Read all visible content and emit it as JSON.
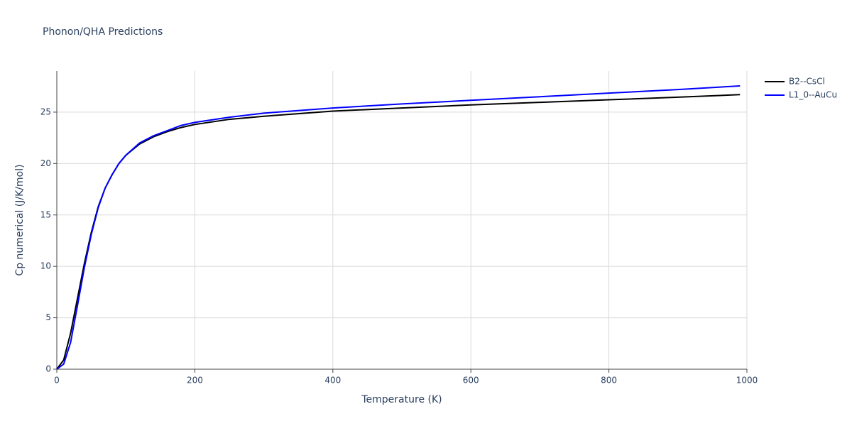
{
  "chart_data": {
    "type": "line",
    "title": "Phonon/QHA Predictions",
    "x_label": "Temperature (K)",
    "y_label": "Cp numerical (J/K/mol)",
    "x": [
      0,
      10,
      20,
      30,
      40,
      50,
      60,
      70,
      80,
      90,
      100,
      120,
      140,
      160,
      180,
      200,
      250,
      300,
      400,
      500,
      600,
      700,
      800,
      900,
      990
    ],
    "series": [
      {
        "name": "B2--CsCl",
        "color": "#000000",
        "values": [
          0,
          0.9,
          3.5,
          6.9,
          10.3,
          13.3,
          15.8,
          17.6,
          18.9,
          20.0,
          20.8,
          21.9,
          22.6,
          23.1,
          23.5,
          23.8,
          24.3,
          24.6,
          25.1,
          25.4,
          25.7,
          25.95,
          26.2,
          26.45,
          26.7
        ]
      },
      {
        "name": "L1_0--AuCu",
        "color": "#0000ff",
        "values": [
          0,
          0.5,
          2.6,
          6.2,
          9.9,
          13.1,
          15.7,
          17.6,
          18.9,
          20.0,
          20.8,
          22.0,
          22.7,
          23.2,
          23.7,
          24.0,
          24.5,
          24.9,
          25.4,
          25.8,
          26.15,
          26.5,
          26.85,
          27.2,
          27.55
        ]
      }
    ],
    "xlim": [
      0,
      1000
    ],
    "xticks": [
      0,
      200,
      400,
      600,
      800,
      1000
    ],
    "ylim": [
      0,
      29
    ],
    "yticks": [
      0,
      5,
      10,
      15,
      20,
      25
    ],
    "grid": true,
    "legend": "outside-right"
  }
}
